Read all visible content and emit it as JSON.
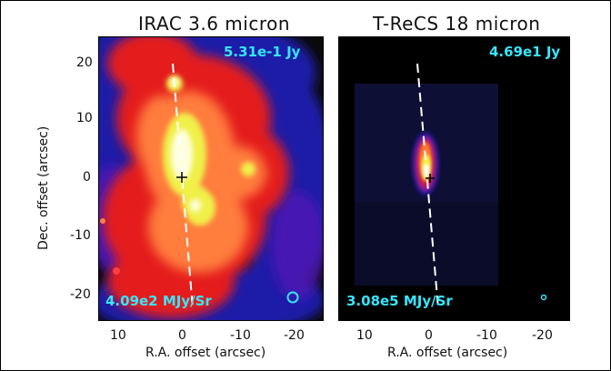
{
  "left_panel": {
    "title": "IRAC 3.6 micron",
    "flux_label": "5.31e-1 Jy",
    "unit_label": "4.09e2 MJy/Sr",
    "beam_icon": "circle",
    "colormap": [
      "#000000",
      "#10169b",
      "#e0141c",
      "#ff7a3a",
      "#f2f24a",
      "#ffffe8"
    ]
  },
  "right_panel": {
    "title": "T-ReCS 18 micron",
    "flux_label": "4.69e1 Jy",
    "unit_label": "3.08e5 MJy/Sr",
    "beam_icon": "circle"
  },
  "axes": {
    "x_label": "R.A. offset (arcsec)",
    "y_label": "Dec. offset (arcsec)",
    "x_ticks": [
      "10",
      "0",
      "-10",
      "-20"
    ],
    "y_ticks": [
      "20",
      "10",
      "0",
      "-10",
      "-20"
    ],
    "x_range": [
      15,
      -25
    ],
    "y_range": [
      -25,
      25
    ]
  }
}
